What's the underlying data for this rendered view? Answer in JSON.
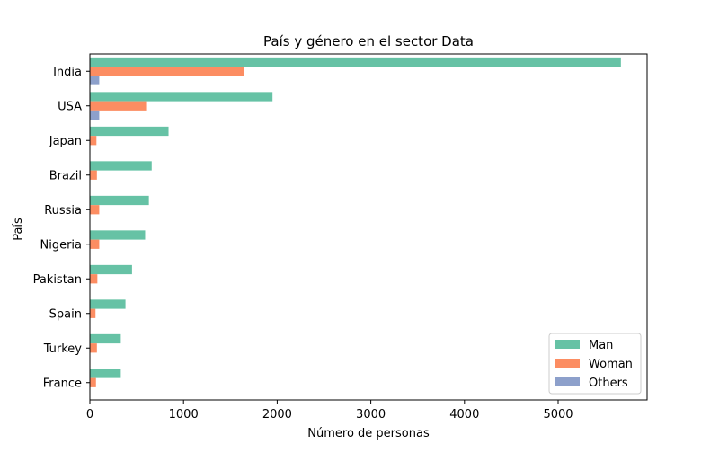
{
  "chart_data": {
    "type": "bar",
    "orientation": "horizontal",
    "title": "País y género en el sector Data",
    "xlabel": "Número de personas",
    "ylabel": "País",
    "categories": [
      "India",
      "USA",
      "Japan",
      "Brazil",
      "Russia",
      "Nigeria",
      "Pakistan",
      "Spain",
      "Turkey",
      "France"
    ],
    "xlim": [
      0,
      5950
    ],
    "xticks": [
      0,
      1000,
      2000,
      3000,
      4000,
      5000
    ],
    "grid": false,
    "legend_position": "lower-right",
    "series": [
      {
        "name": "Man",
        "color": "#66c2a5",
        "values": [
          5670,
          1950,
          840,
          660,
          630,
          590,
          450,
          380,
          330,
          330
        ]
      },
      {
        "name": "Woman",
        "color": "#fc8d62",
        "values": [
          1650,
          610,
          70,
          75,
          100,
          100,
          80,
          60,
          75,
          65
        ]
      },
      {
        "name": "Others",
        "color": "#8da0cb",
        "values": [
          100,
          100,
          5,
          5,
          3,
          3,
          2,
          2,
          2,
          2
        ]
      }
    ]
  }
}
